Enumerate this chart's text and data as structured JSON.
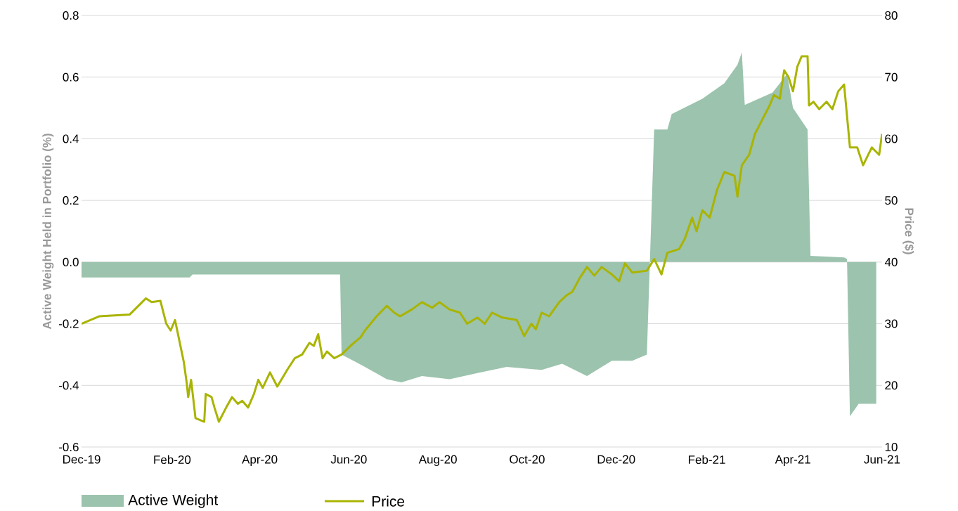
{
  "chart_data": {
    "type": "area",
    "xlabel": null,
    "ylabel": "Active Weight Held in Portfolio (%)",
    "y2label": "Price ($)",
    "xlim": [
      "2019-12-01",
      "2021-06-01"
    ],
    "xticks": [
      {
        "value": "2019-12-01",
        "label": "Dec-19"
      },
      {
        "value": "2020-02-01",
        "label": "Feb-20"
      },
      {
        "value": "2020-04-01",
        "label": "Apr-20"
      },
      {
        "value": "2020-06-01",
        "label": "Jun-20"
      },
      {
        "value": "2020-08-01",
        "label": "Aug-20"
      },
      {
        "value": "2020-10-01",
        "label": "Oct-20"
      },
      {
        "value": "2020-12-01",
        "label": "Dec-20"
      },
      {
        "value": "2021-02-01",
        "label": "Feb-21"
      },
      {
        "value": "2021-04-01",
        "label": "Apr-21"
      },
      {
        "value": "2021-06-01",
        "label": "Jun-21"
      }
    ],
    "ylim": [
      -0.6,
      0.8
    ],
    "yticks": [
      -0.6,
      -0.4,
      -0.2,
      {
        "value": 0,
        "label": "0.0"
      },
      0.2,
      0.4,
      0.6,
      0.8
    ],
    "y2lim": [
      10,
      80
    ],
    "y2ticks": [
      10,
      20,
      30,
      40,
      50,
      60,
      70,
      80
    ],
    "grid": "y",
    "legend": "bottom",
    "series": [
      {
        "name": "Active Weight",
        "color": "#9cc3ad",
        "x": [
          "2019-12-01",
          "2020-02-13",
          "2020-02-15",
          "2020-05-26",
          "2020-05-27",
          "2020-06-12",
          "2020-06-27",
          "2020-07-07",
          "2020-07-21",
          "2020-08-09",
          "2020-08-28",
          "2020-09-17",
          "2020-10-11",
          "2020-10-25",
          "2020-11-11",
          "2020-11-28",
          "2020-12-12",
          "2020-12-22",
          "2020-12-27",
          "2021-01-05",
          "2021-01-08",
          "2021-01-29",
          "2021-02-13",
          "2021-02-22",
          "2021-02-25",
          "2021-02-27",
          "2021-03-18",
          "2021-03-28",
          "2021-04-01",
          "2021-04-11",
          "2021-04-13",
          "2021-05-06",
          "2021-05-08",
          "2021-05-10",
          "2021-05-16",
          "2021-05-28"
        ],
        "values": [
          -0.05,
          -0.05,
          -0.04,
          -0.04,
          -0.3,
          -0.34,
          -0.38,
          -0.39,
          -0.37,
          -0.38,
          -0.36,
          -0.34,
          -0.35,
          -0.33,
          -0.37,
          -0.32,
          -0.32,
          -0.3,
          0.43,
          0.43,
          0.48,
          0.53,
          0.58,
          0.64,
          0.68,
          0.51,
          0.55,
          0.61,
          0.5,
          0.43,
          0.02,
          0.015,
          0.01,
          -0.5,
          -0.46,
          -0.46
        ]
      },
      {
        "name": "Price",
        "type": "line",
        "axis": "y2",
        "color": "#a9b400",
        "x": [
          "2019-12-01",
          "2019-12-13",
          "2020-01-03",
          "2020-01-14",
          "2020-01-18",
          "2020-01-24",
          "2020-01-28",
          "2020-01-31",
          "2020-02-03",
          "2020-02-06",
          "2020-02-09",
          "2020-02-11",
          "2020-02-12",
          "2020-02-14",
          "2020-02-17",
          "2020-02-23",
          "2020-02-24",
          "2020-02-28",
          "2020-03-01",
          "2020-03-04",
          "2020-03-09",
          "2020-03-13",
          "2020-03-17",
          "2020-03-20",
          "2020-03-24",
          "2020-03-28",
          "2020-03-31",
          "2020-04-03",
          "2020-04-08",
          "2020-04-13",
          "2020-04-20",
          "2020-04-25",
          "2020-04-30",
          "2020-05-05",
          "2020-05-08",
          "2020-05-11",
          "2020-05-14",
          "2020-05-17",
          "2020-05-22",
          "2020-05-27",
          "2020-06-03",
          "2020-06-09",
          "2020-06-12",
          "2020-06-20",
          "2020-06-27",
          "2020-07-02",
          "2020-07-06",
          "2020-07-14",
          "2020-07-21",
          "2020-07-28",
          "2020-08-02",
          "2020-08-09",
          "2020-08-16",
          "2020-08-21",
          "2020-08-28",
          "2020-09-02",
          "2020-09-07",
          "2020-09-14",
          "2020-09-24",
          "2020-09-29",
          "2020-10-04",
          "2020-10-07",
          "2020-10-11",
          "2020-10-16",
          "2020-10-23",
          "2020-10-28",
          "2020-11-01",
          "2020-11-06",
          "2020-11-11",
          "2020-11-16",
          "2020-11-21",
          "2020-11-28",
          "2020-12-03",
          "2020-12-07",
          "2020-12-12",
          "2020-12-22",
          "2020-12-27",
          "2021-01-01",
          "2021-01-05",
          "2021-01-13",
          "2021-01-17",
          "2021-01-22",
          "2021-01-25",
          "2021-01-29",
          "2021-02-03",
          "2021-02-08",
          "2021-02-13",
          "2021-02-20",
          "2021-02-22",
          "2021-02-25",
          "2021-03-02",
          "2021-03-06",
          "2021-03-11",
          "2021-03-16",
          "2021-03-19",
          "2021-03-23",
          "2021-03-26",
          "2021-03-29",
          "2021-04-01",
          "2021-04-04",
          "2021-04-07",
          "2021-04-11",
          "2021-04-12",
          "2021-04-15",
          "2021-04-19",
          "2021-04-24",
          "2021-04-28",
          "2021-05-02",
          "2021-05-06",
          "2021-05-08",
          "2021-05-10",
          "2021-05-15",
          "2021-05-19",
          "2021-05-25",
          "2021-05-30",
          "2021-06-01"
        ],
        "values": [
          30.0,
          31.2,
          31.5,
          34.1,
          33.5,
          33.7,
          30.0,
          28.9,
          30.6,
          27.2,
          23.8,
          20.4,
          18.1,
          20.9,
          14.7,
          14.1,
          18.6,
          18.1,
          16.4,
          14.1,
          16.4,
          18.1,
          17.0,
          17.5,
          16.4,
          18.6,
          20.9,
          19.6,
          22.1,
          19.8,
          22.6,
          24.4,
          25.0,
          26.9,
          26.4,
          28.3,
          24.4,
          25.5,
          24.4,
          25.0,
          26.6,
          27.8,
          28.9,
          31.2,
          32.9,
          31.8,
          31.2,
          32.3,
          33.5,
          32.6,
          33.5,
          32.3,
          31.8,
          30.0,
          31.0,
          30.0,
          31.8,
          31.0,
          30.6,
          28.0,
          30.0,
          29.1,
          31.8,
          31.2,
          33.5,
          34.6,
          35.2,
          37.4,
          39.2,
          37.8,
          39.2,
          38.0,
          36.9,
          39.8,
          38.3,
          38.6,
          40.5,
          38.0,
          41.5,
          42.1,
          43.8,
          47.2,
          45.0,
          48.4,
          47.2,
          51.7,
          54.6,
          54.0,
          50.6,
          55.7,
          57.4,
          60.8,
          63.1,
          65.4,
          67.1,
          66.5,
          71.1,
          70.0,
          67.7,
          71.7,
          73.4,
          73.4,
          65.4,
          66.0,
          64.8,
          66.0,
          64.8,
          67.7,
          68.8,
          63.7,
          58.6,
          58.6,
          55.7,
          58.6,
          57.4,
          60.8
        ]
      }
    ]
  }
}
